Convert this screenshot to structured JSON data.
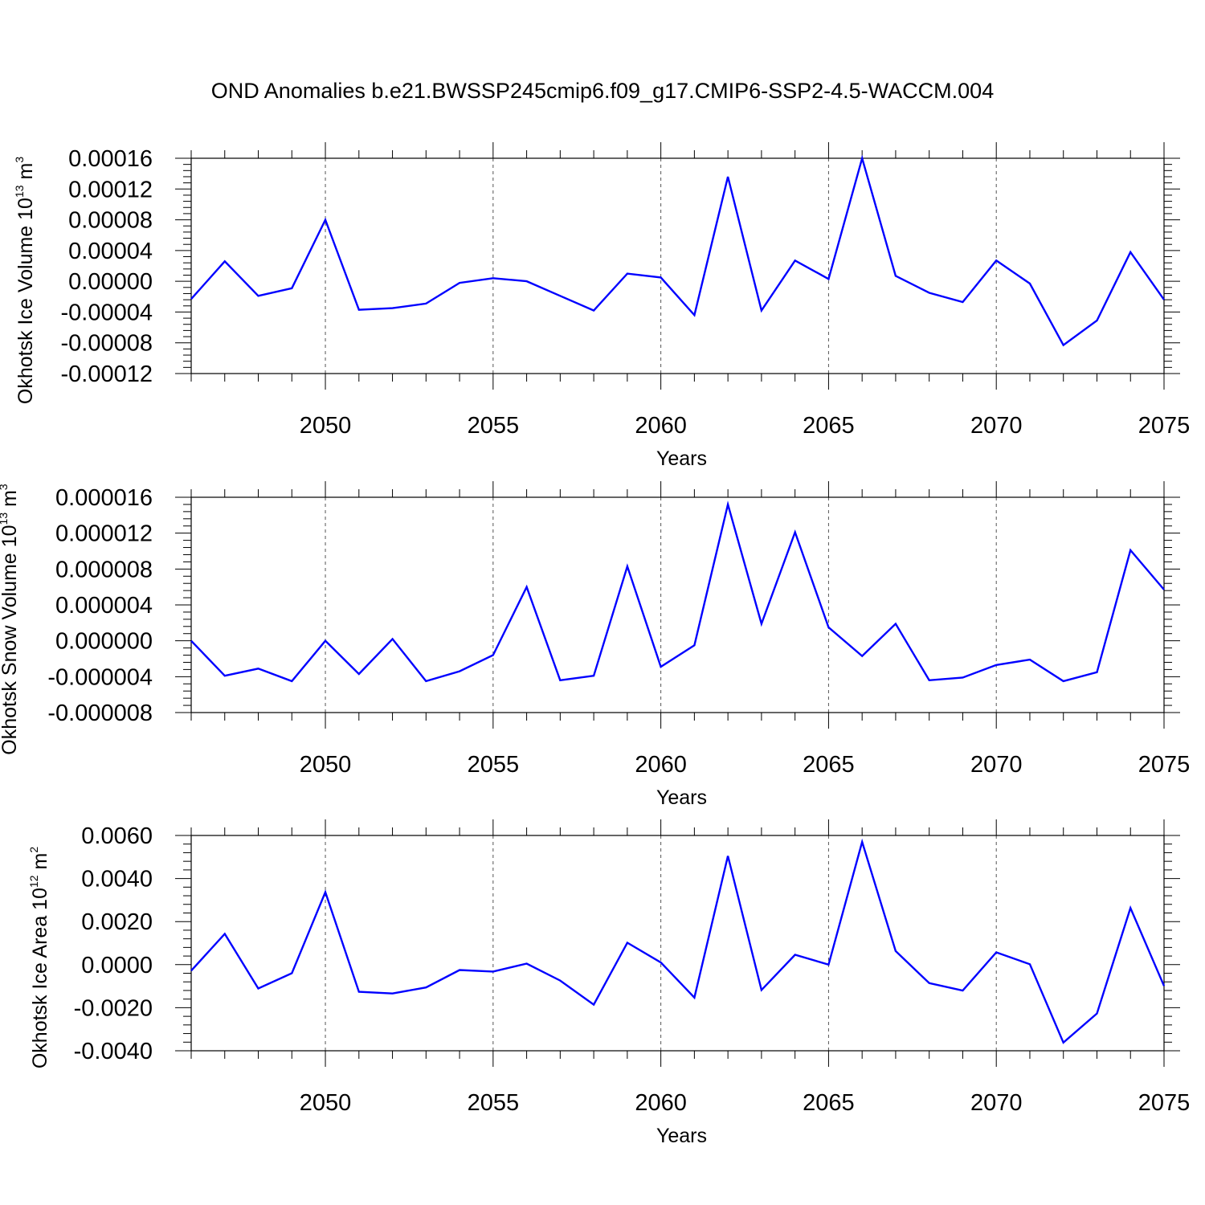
{
  "title": "OND Anomalies b.e21.BWSSP245cmip6.f09_g17.CMIP6-SSP2-4.5-WACCM.004",
  "colors": {
    "line": "#0000ff",
    "axes": "#000000",
    "grid": "#555555"
  },
  "chart_data": [
    {
      "type": "line",
      "ylabel": {
        "text": "Okhotsk Ice Volume 10",
        "exp1": "13",
        "mid": " m",
        "exp2": "3"
      },
      "xlabel": "Years",
      "xlim": [
        2046,
        2075
      ],
      "ylim": [
        -0.00012,
        0.00016
      ],
      "yticks": [
        -0.00012,
        -8e-05,
        -4e-05,
        0.0,
        4e-05,
        8e-05,
        0.00012,
        0.00016
      ],
      "ytick_labels": [
        "-0.00012",
        "-0.00008",
        "-0.00004",
        "0.00000",
        "0.00004",
        "0.00008",
        "0.00012",
        "0.00016"
      ],
      "xticks": [
        2050,
        2055,
        2060,
        2065,
        2070,
        2075
      ],
      "xtick_labels": [
        "2050",
        "2055",
        "2060",
        "2065",
        "2070",
        "2075"
      ],
      "grid_x": [
        2050,
        2055,
        2060,
        2065,
        2070
      ],
      "x": [
        2046,
        2047,
        2048,
        2049,
        2050,
        2051,
        2052,
        2053,
        2054,
        2055,
        2056,
        2057,
        2058,
        2059,
        2060,
        2061,
        2062,
        2063,
        2064,
        2065,
        2066,
        2067,
        2068,
        2069,
        2070,
        2071,
        2072,
        2073,
        2074,
        2075
      ],
      "values": [
        -2.3e-05,
        2.6e-05,
        -1.9e-05,
        -9e-06,
        8e-05,
        -3.7e-05,
        -3.5e-05,
        -2.9e-05,
        -2e-06,
        4e-06,
        0.0,
        -1.9e-05,
        -3.8e-05,
        1e-05,
        5e-06,
        -4.4e-05,
        0.000136,
        -3.8e-05,
        2.7e-05,
        3e-06,
        0.00016,
        7e-06,
        -1.5e-05,
        -2.7e-05,
        2.7e-05,
        -3e-06,
        -8.3e-05,
        -5.1e-05,
        3.8e-05,
        -2.4e-05
      ]
    },
    {
      "type": "line",
      "ylabel": {
        "text": "Okhotsk Snow Volume 10",
        "exp1": "13",
        "mid": " m",
        "exp2": "3"
      },
      "xlabel": "Years",
      "xlim": [
        2046,
        2075
      ],
      "ylim": [
        -8e-06,
        1.6e-05
      ],
      "yticks": [
        -8e-06,
        -4e-06,
        0.0,
        4e-06,
        8e-06,
        1.2e-05,
        1.6e-05
      ],
      "ytick_labels": [
        "-0.000008",
        "-0.000004",
        "0.000000",
        "0.000004",
        "0.000008",
        "0.000012",
        "0.000016"
      ],
      "xticks": [
        2050,
        2055,
        2060,
        2065,
        2070,
        2075
      ],
      "xtick_labels": [
        "2050",
        "2055",
        "2060",
        "2065",
        "2070",
        "2075"
      ],
      "grid_x": [
        2050,
        2055,
        2060,
        2065,
        2070
      ],
      "x": [
        2046,
        2047,
        2048,
        2049,
        2050,
        2051,
        2052,
        2053,
        2054,
        2055,
        2056,
        2057,
        2058,
        2059,
        2060,
        2061,
        2062,
        2063,
        2064,
        2065,
        2066,
        2067,
        2068,
        2069,
        2070,
        2071,
        2072,
        2073,
        2074,
        2075
      ],
      "values": [
        0.0,
        -3.9e-06,
        -3.1e-06,
        -4.5e-06,
        0.0,
        -3.7e-06,
        2e-07,
        -4.5e-06,
        -3.4e-06,
        -1.6e-06,
        6e-06,
        -4.4e-06,
        -3.9e-06,
        8.3e-06,
        -2.9e-06,
        -5e-07,
        1.52e-05,
        1.9e-06,
        1.21e-05,
        1.5e-06,
        -1.7e-06,
        1.9e-06,
        -4.4e-06,
        -4.1e-06,
        -2.7e-06,
        -2.1e-06,
        -4.5e-06,
        -3.5e-06,
        1.01e-05,
        5.7e-06
      ]
    },
    {
      "type": "line",
      "ylabel": {
        "text": "Okhotsk Ice Area 10",
        "exp1": "12",
        "mid": " m",
        "exp2": "2"
      },
      "xlabel": "Years",
      "xlim": [
        2046,
        2075
      ],
      "ylim": [
        -0.004,
        0.006
      ],
      "yticks": [
        -0.004,
        -0.002,
        0.0,
        0.002,
        0.004,
        0.006
      ],
      "ytick_labels": [
        "-0.0040",
        "-0.0020",
        "0.0000",
        "0.0020",
        "0.0040",
        "0.0060"
      ],
      "xticks": [
        2050,
        2055,
        2060,
        2065,
        2070,
        2075
      ],
      "xtick_labels": [
        "2050",
        "2055",
        "2060",
        "2065",
        "2070",
        "2075"
      ],
      "grid_x": [
        2050,
        2055,
        2060,
        2065,
        2070
      ],
      "x": [
        2046,
        2047,
        2048,
        2049,
        2050,
        2051,
        2052,
        2053,
        2054,
        2055,
        2056,
        2057,
        2058,
        2059,
        2060,
        2061,
        2062,
        2063,
        2064,
        2065,
        2066,
        2067,
        2068,
        2069,
        2070,
        2071,
        2072,
        2073,
        2074,
        2075
      ],
      "values": [
        -0.00028,
        0.00143,
        -0.00111,
        -0.0004,
        0.00337,
        -0.00126,
        -0.00134,
        -0.00106,
        -0.00025,
        -0.00032,
        5e-05,
        -0.00074,
        -0.00186,
        0.00102,
        0.0001,
        -0.00153,
        0.00505,
        -0.00118,
        0.00046,
        0.0,
        0.0057,
        0.00063,
        -0.00086,
        -0.0012,
        0.00057,
        2e-05,
        -0.00362,
        -0.00227,
        0.00263,
        -0.00099
      ]
    }
  ]
}
